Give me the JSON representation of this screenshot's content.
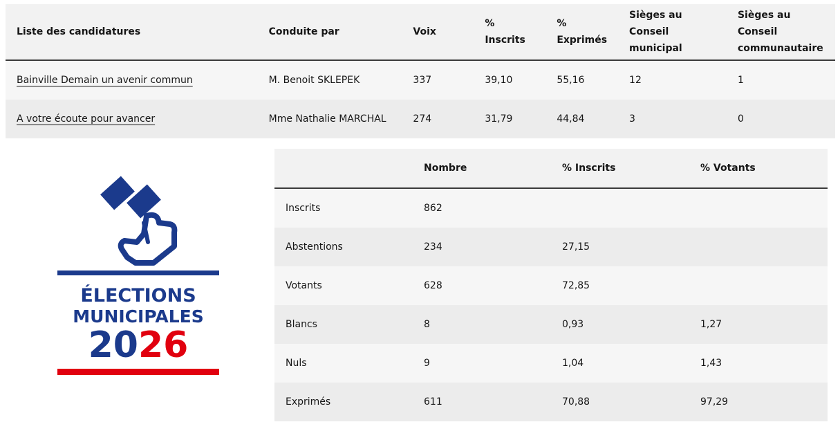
{
  "candidatures": {
    "headers": [
      "Liste des candidatures",
      "Conduite par",
      "Voix",
      "% Inscrits",
      "% Exprimés",
      "Sièges au Conseil municipal",
      "Sièges au Conseil communautaire"
    ],
    "rows": [
      [
        "Bainville Demain un avenir commun",
        "M. Benoit SKLEPEK",
        "337",
        "39,10",
        "55,16",
        "12",
        "1"
      ],
      [
        "A votre écoute pour avancer",
        "Mme Nathalie MARCHAL",
        "274",
        "31,79",
        "44,84",
        "3",
        "0"
      ]
    ]
  },
  "participation": {
    "headers": [
      "",
      "Nombre",
      "% Inscrits",
      "% Votants"
    ],
    "rows": [
      [
        "Inscrits",
        "862",
        "",
        ""
      ],
      [
        "Abstentions",
        "234",
        "27,15",
        ""
      ],
      [
        "Votants",
        "628",
        "72,85",
        ""
      ],
      [
        "Blancs",
        "8",
        "0,93",
        "1,27"
      ],
      [
        "Nuls",
        "9",
        "1,04",
        "1,43"
      ],
      [
        "Exprimés",
        "611",
        "70,88",
        "97,29"
      ]
    ]
  },
  "logo": {
    "line1": "ÉLECTIONS",
    "line2": "MUNICIPALES",
    "year_a": "20",
    "year_b": "26",
    "colors": {
      "blue": "#1b3a8c",
      "red": "#e1000f"
    }
  }
}
